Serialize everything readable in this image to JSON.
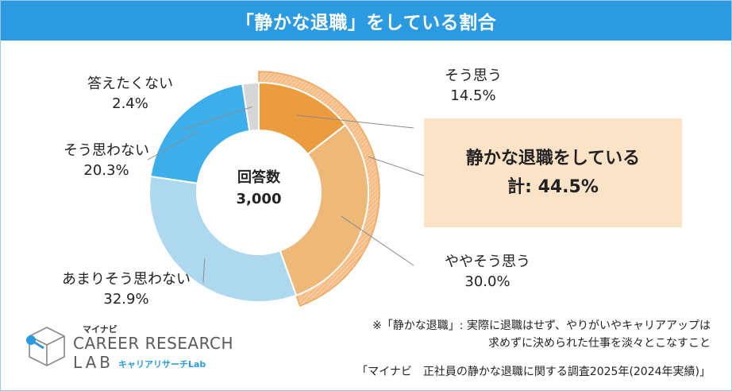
{
  "title": "「静かな退職」をしている割合",
  "chart_data": {
    "type": "pie",
    "center_label": "回答数",
    "center_value": "3,000",
    "slices": [
      {
        "label": "そう思う",
        "value": 14.5,
        "value_text": "14.5%",
        "color": "#eb9c3e"
      },
      {
        "label": "ややそう思う",
        "value": 30.0,
        "value_text": "30.0%",
        "color": "#edb878"
      },
      {
        "label": "あまりそう思わない",
        "value": 32.9,
        "value_text": "32.9%",
        "color": "#aed8ee"
      },
      {
        "label": "そう思わない",
        "value": 20.3,
        "value_text": "20.3%",
        "color": "#3daeea"
      },
      {
        "label": "答えたくない",
        "value": 2.4,
        "value_text": "2.4%",
        "color": "#d6d6d6"
      }
    ],
    "highlight": {
      "line1": "静かな退職をしている",
      "line2": "計: 44.5%",
      "value": 44.5,
      "color": "#f7c89a",
      "outline": "#f2a45a",
      "box_color": "#fbe3c8"
    }
  },
  "footnote": {
    "line1": "※「静かな退職」: 実際に退職はせず、やりがいやキャリアアップは",
    "line2": "求めずに決められた仕事を淡々とこなすこと"
  },
  "source": "「マイナビ　正社員の静かな退職に関する調査2025年(2024年実績)」",
  "logo": {
    "brand_small": "マイナビ",
    "brand_main": "CAREER RESEARCH",
    "brand_lab": "LAB",
    "brand_sub": "キャリアリサーチLab",
    "icon": "cube-icon",
    "accent": "#2b9ae0"
  },
  "colors": {
    "title_bar": "#2b9ae0",
    "frame": "#9ac9ea"
  }
}
